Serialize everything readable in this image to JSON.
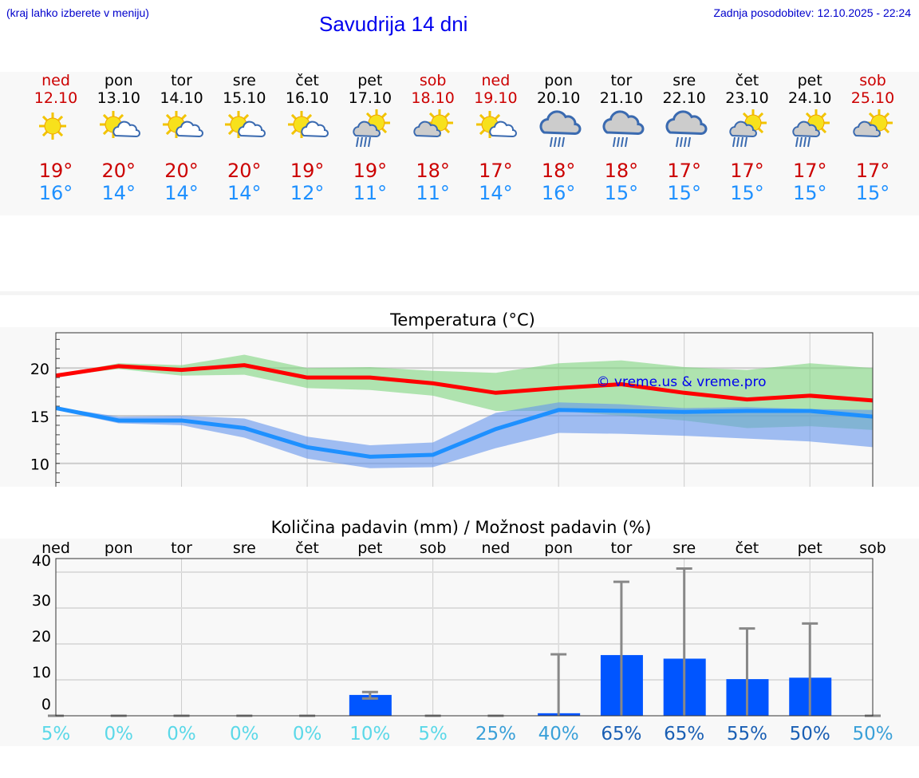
{
  "header": {
    "hint": "(kraj lahko izberete v meniju)",
    "title": "Savudrija 14 dni",
    "updated": "Zadnja posodobitev: 12.10.2025 - 22:24"
  },
  "days": [
    {
      "name": "ned",
      "date": "12.10",
      "weekend": true,
      "icon": "sun-icon",
      "max": "19°",
      "min": "16°"
    },
    {
      "name": "pon",
      "date": "13.10",
      "weekend": false,
      "icon": "sun-cloud-icon",
      "max": "20°",
      "min": "14°"
    },
    {
      "name": "tor",
      "date": "14.10",
      "weekend": false,
      "icon": "sun-cloud-icon",
      "max": "20°",
      "min": "14°"
    },
    {
      "name": "sre",
      "date": "15.10",
      "weekend": false,
      "icon": "sun-cloud-icon",
      "max": "20°",
      "min": "14°"
    },
    {
      "name": "čet",
      "date": "16.10",
      "weekend": false,
      "icon": "sun-cloud-icon",
      "max": "19°",
      "min": "12°"
    },
    {
      "name": "pet",
      "date": "17.10",
      "weekend": false,
      "icon": "sun-cloud-rain-icon",
      "max": "19°",
      "min": "11°"
    },
    {
      "name": "sob",
      "date": "18.10",
      "weekend": true,
      "icon": "cloud-sun-icon",
      "max": "18°",
      "min": "11°"
    },
    {
      "name": "ned",
      "date": "19.10",
      "weekend": true,
      "icon": "sun-cloud-icon",
      "max": "17°",
      "min": "14°"
    },
    {
      "name": "pon",
      "date": "20.10",
      "weekend": false,
      "icon": "cloud-rain-icon",
      "max": "18°",
      "min": "16°"
    },
    {
      "name": "tor",
      "date": "21.10",
      "weekend": false,
      "icon": "cloud-rain-icon",
      "max": "18°",
      "min": "15°"
    },
    {
      "name": "sre",
      "date": "22.10",
      "weekend": false,
      "icon": "cloud-rain-icon",
      "max": "17°",
      "min": "15°"
    },
    {
      "name": "čet",
      "date": "23.10",
      "weekend": false,
      "icon": "sun-cloud-rain-icon",
      "max": "17°",
      "min": "15°"
    },
    {
      "name": "pet",
      "date": "24.10",
      "weekend": false,
      "icon": "sun-cloud-rain-icon",
      "max": "17°",
      "min": "15°"
    },
    {
      "name": "sob",
      "date": "25.10",
      "weekend": true,
      "icon": "cloud-sun-icon",
      "max": "17°",
      "min": "15°"
    }
  ],
  "chart_data": [
    {
      "type": "line",
      "title": "Temperatura (°C)",
      "ylim": [
        7.3,
        23.7
      ],
      "yticks": [
        10,
        15,
        20
      ],
      "watermark": "© vreme.us & vreme.pro",
      "series": [
        {
          "name": "max",
          "color": "#ff0000",
          "values": [
            19.2,
            20.2,
            19.8,
            20.3,
            19.0,
            19.0,
            18.4,
            17.4,
            17.9,
            18.3,
            17.4,
            16.7,
            17.1,
            16.6
          ],
          "band_upper": [
            19.3,
            20.5,
            20.3,
            21.4,
            20.0,
            20.1,
            19.7,
            19.5,
            20.5,
            20.8,
            20.1,
            19.8,
            20.5,
            20.0
          ],
          "band_lower": [
            19.1,
            19.9,
            19.2,
            19.3,
            17.9,
            17.7,
            17.1,
            15.5,
            15.5,
            15.0,
            14.5,
            13.7,
            13.9,
            13.5
          ],
          "band_color": "#7fd67f"
        },
        {
          "name": "min",
          "color": "#1e90ff",
          "values": [
            15.8,
            14.5,
            14.5,
            13.7,
            11.7,
            10.7,
            10.9,
            13.6,
            15.6,
            15.5,
            15.4,
            15.5,
            15.5,
            14.9
          ],
          "band_upper": [
            15.9,
            14.9,
            15.0,
            14.7,
            12.8,
            11.9,
            12.2,
            15.3,
            16.4,
            16.2,
            15.8,
            15.9,
            15.7,
            15.6
          ],
          "band_lower": [
            15.6,
            14.2,
            14.0,
            12.7,
            10.5,
            9.5,
            9.6,
            11.6,
            13.2,
            13.1,
            12.9,
            12.6,
            12.3,
            11.7
          ],
          "band_color": "#6495ed"
        }
      ]
    },
    {
      "type": "bar",
      "title": "Količina padavin (mm) / Možnost padavin (%)",
      "ylim": [
        0,
        42
      ],
      "yticks": [
        0,
        10,
        20,
        30,
        40
      ],
      "categories": [
        "ned",
        "pon",
        "tor",
        "sre",
        "čet",
        "pet",
        "sob",
        "ned",
        "pon",
        "tor",
        "sre",
        "čet",
        "pet",
        "sob"
      ],
      "values": [
        0,
        0,
        0,
        0,
        0,
        5.8,
        0,
        0,
        0.7,
        16.9,
        15.9,
        10.2,
        10.6,
        0
      ],
      "err_low": [
        0,
        0,
        0,
        0,
        0,
        4.8,
        0,
        0,
        0,
        0,
        0,
        0,
        0,
        0
      ],
      "err_high": [
        0,
        0,
        0,
        0,
        0,
        6.6,
        0,
        0,
        17.1,
        37.3,
        41,
        24.3,
        25.7,
        0
      ],
      "probability": [
        "5%",
        "0%",
        "0%",
        "0%",
        "0%",
        "10%",
        "5%",
        "25%",
        "40%",
        "65%",
        "65%",
        "55%",
        "50%",
        "50%"
      ],
      "bar_color": "#0055ff"
    }
  ]
}
